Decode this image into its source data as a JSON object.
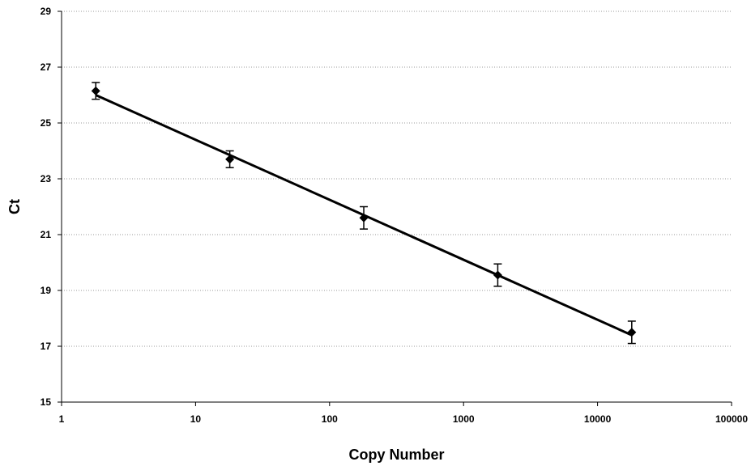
{
  "chart_data": {
    "type": "scatter",
    "xlabel": "Copy Number",
    "ylabel": "Ct",
    "x_scale": "log",
    "xlim": [
      1,
      100000
    ],
    "ylim": [
      15,
      29
    ],
    "x_ticks": [
      1,
      10,
      100,
      1000,
      10000,
      100000
    ],
    "x_tick_labels": [
      "1",
      "10",
      "100",
      "1000",
      "10000",
      "100000"
    ],
    "y_ticks": [
      15,
      17,
      19,
      21,
      23,
      25,
      27,
      29
    ],
    "y_tick_labels": [
      "15",
      "17",
      "19",
      "21",
      "23",
      "25",
      "27",
      "29"
    ],
    "grid": "horizontal-dotted",
    "marker": "diamond",
    "colors": {
      "series": "#000000",
      "grid": "#9a9a9a",
      "axis": "#000000"
    },
    "series": [
      {
        "points": [
          {
            "x": 1.8,
            "y": 26.15,
            "err": 0.3
          },
          {
            "x": 18,
            "y": 23.7,
            "err": 0.3
          },
          {
            "x": 180,
            "y": 21.6,
            "err": 0.4
          },
          {
            "x": 1800,
            "y": 19.55,
            "err": 0.4
          },
          {
            "x": 18000,
            "y": 17.5,
            "err": 0.4
          }
        ]
      }
    ],
    "trendline": [
      {
        "x": 1.8,
        "y": 26.0
      },
      {
        "x": 18000,
        "y": 17.4
      }
    ]
  }
}
